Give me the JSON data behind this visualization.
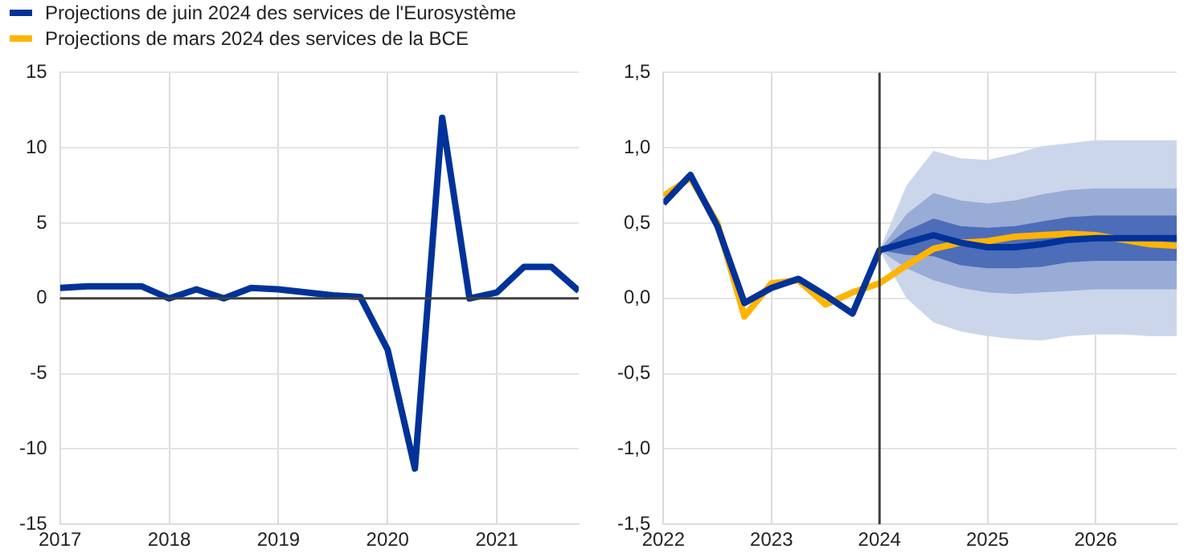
{
  "chart_data": [
    {
      "type": "line",
      "legend": false,
      "grid": true,
      "marker": "none",
      "xlim": [
        2017,
        2021.75
      ],
      "xticks": [
        2017,
        2018,
        2019,
        2020,
        2021
      ],
      "ylim": [
        -15,
        15
      ],
      "yticks": [
        -15,
        -10,
        -5,
        0,
        5,
        10,
        15
      ],
      "ref_lines": [
        {
          "axis": "y",
          "value": 0,
          "color": "#404040"
        }
      ],
      "series": [
        {
          "color": "#003299",
          "x": [
            2017,
            2017.25,
            2017.5,
            2017.75,
            2018,
            2018.25,
            2018.5,
            2018.75,
            2019,
            2019.25,
            2019.5,
            2019.75,
            2020,
            2020.25,
            2020.5,
            2020.75,
            2021,
            2021.25,
            2021.5,
            2021.75
          ],
          "values": [
            0.7,
            0.8,
            0.8,
            0.8,
            0.0,
            0.6,
            0.0,
            0.7,
            0.6,
            0.4,
            0.2,
            0.1,
            -3.4,
            -11.3,
            12.0,
            0.0,
            0.4,
            2.1,
            2.1,
            0.5
          ]
        }
      ]
    },
    {
      "type": "line",
      "legend": "top left",
      "grid": true,
      "marker": "none",
      "xlim": [
        2022,
        2026.75
      ],
      "xticks": [
        2022,
        2023,
        2024,
        2025,
        2026
      ],
      "ylim": [
        -1.5,
        1.5
      ],
      "yticks": [
        {
          "value": -1.5,
          "label": "-1,5"
        },
        {
          "value": -1,
          "label": "-1,0"
        },
        {
          "value": -0.5,
          "label": "-0,5"
        },
        {
          "value": 0,
          "label": "0,0"
        },
        {
          "value": 0.5,
          "label": "0,5"
        },
        {
          "value": 1,
          "label": "1,0"
        },
        {
          "value": 1.5,
          "label": "1,5"
        }
      ],
      "ref_lines": [
        {
          "axis": "x",
          "value": 2024,
          "color": "#404040"
        }
      ],
      "series": [
        {
          "name": "Projections de juin 2024 des services de l'Eurosystème",
          "color": "#003299",
          "x": [
            2022,
            2022.25,
            2022.5,
            2022.75,
            2023,
            2023.25,
            2023.5,
            2023.75,
            2024,
            2024.25,
            2024.5,
            2024.75,
            2025,
            2025.25,
            2025.5,
            2025.75,
            2026,
            2026.25,
            2026.5,
            2026.75
          ],
          "values": [
            0.63,
            0.82,
            0.48,
            -0.03,
            0.07,
            0.13,
            0.02,
            -0.1,
            0.32,
            0.37,
            0.42,
            0.37,
            0.34,
            0.34,
            0.36,
            0.39,
            0.4,
            0.4,
            0.4,
            0.4
          ]
        },
        {
          "name": "Projections de mars 2024 des services de la BCE",
          "color": "#ffb400",
          "x": [
            2022,
            2022.25,
            2022.5,
            2022.75,
            2023,
            2023.25,
            2023.5,
            2023.75,
            2024,
            2024.25,
            2024.5,
            2024.75,
            2025,
            2025.25,
            2025.5,
            2025.75,
            2026,
            2026.25,
            2026.5,
            2026.75
          ],
          "values": [
            0.68,
            0.8,
            0.5,
            -0.12,
            0.1,
            0.12,
            -0.04,
            0.04,
            0.1,
            0.22,
            0.33,
            0.37,
            0.38,
            0.41,
            0.42,
            0.43,
            0.42,
            0.39,
            0.36,
            0.35
          ]
        },
        {
          "color": "#ccd6ea",
          "x": [
            2024,
            2024.25,
            2024.5,
            2024.75,
            2025,
            2025.25,
            2025.5,
            2025.75,
            2026,
            2026.25,
            2026.5,
            2026.75
          ],
          "values": [
            null,
            null,
            null,
            null,
            null,
            null,
            null,
            null,
            null,
            null,
            null,
            null
          ],
          "lower": [
            0.32,
            0.0,
            -0.16,
            -0.22,
            -0.25,
            -0.27,
            -0.28,
            -0.25,
            -0.24,
            -0.24,
            -0.25,
            -0.25
          ],
          "upper": [
            0.32,
            0.75,
            0.98,
            0.93,
            0.92,
            0.96,
            1.01,
            1.03,
            1.05,
            1.05,
            1.05,
            1.05
          ]
        },
        {
          "color": "#99acd6",
          "x": [
            2024,
            2024.25,
            2024.5,
            2024.75,
            2025,
            2025.25,
            2025.5,
            2025.75,
            2026,
            2026.25,
            2026.5,
            2026.75
          ],
          "values": [
            null,
            null,
            null,
            null,
            null,
            null,
            null,
            null,
            null,
            null,
            null,
            null
          ],
          "lower": [
            0.32,
            0.2,
            0.12,
            0.07,
            0.04,
            0.03,
            0.04,
            0.05,
            0.06,
            0.06,
            0.06,
            0.06
          ],
          "upper": [
            0.32,
            0.56,
            0.7,
            0.65,
            0.63,
            0.65,
            0.69,
            0.72,
            0.73,
            0.73,
            0.73,
            0.73
          ]
        },
        {
          "color": "#4d6db8",
          "x": [
            2024,
            2024.25,
            2024.5,
            2024.75,
            2025,
            2025.25,
            2025.5,
            2025.75,
            2026,
            2026.25,
            2026.5,
            2026.75
          ],
          "values": [
            null,
            null,
            null,
            null,
            null,
            null,
            null,
            null,
            null,
            null,
            null,
            null
          ],
          "lower": [
            0.32,
            0.29,
            0.28,
            0.22,
            0.2,
            0.2,
            0.21,
            0.24,
            0.25,
            0.25,
            0.25,
            0.25
          ],
          "upper": [
            0.32,
            0.45,
            0.53,
            0.48,
            0.47,
            0.48,
            0.51,
            0.54,
            0.55,
            0.55,
            0.55,
            0.55
          ]
        }
      ]
    }
  ]
}
